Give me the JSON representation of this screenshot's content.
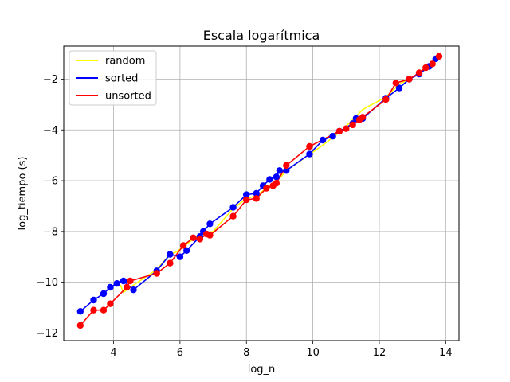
{
  "chart_data": {
    "type": "line",
    "title": "Escala logarítmica",
    "xlabel": "log_n",
    "ylabel": "log_tiempo (s)",
    "xlim": [
      2.5,
      14.4
    ],
    "ylim": [
      -12.3,
      -0.7
    ],
    "xticks": [
      4,
      6,
      8,
      10,
      12,
      14
    ],
    "yticks": [
      -12,
      -10,
      -8,
      -6,
      -4,
      -2
    ],
    "grid": true,
    "legend_position": "top-left",
    "markers": "circle",
    "series": [
      {
        "name": "random",
        "color": "#ffff00",
        "points": [
          [
            4.2,
            -10.1
          ],
          [
            4.3,
            -10.4
          ],
          [
            4.5,
            -10.2
          ],
          [
            5.3,
            -9.5
          ],
          [
            5.7,
            -8.9
          ],
          [
            5.9,
            -8.8
          ],
          [
            6.1,
            -8.6
          ],
          [
            6.4,
            -8.3
          ],
          [
            6.7,
            -8.1
          ],
          [
            7.0,
            -8.0
          ],
          [
            7.6,
            -7.1
          ],
          [
            8.0,
            -6.7
          ],
          [
            8.3,
            -6.6
          ],
          [
            8.7,
            -6.2
          ],
          [
            9.0,
            -5.9
          ],
          [
            9.2,
            -5.6
          ],
          [
            10.3,
            -4.6
          ],
          [
            10.8,
            -4.1
          ],
          [
            11.2,
            -3.6
          ],
          [
            11.5,
            -3.2
          ],
          [
            12.2,
            -2.7
          ],
          [
            12.6,
            -2.2
          ],
          [
            12.9,
            -2.0
          ],
          [
            13.3,
            -1.7
          ],
          [
            13.6,
            -1.4
          ],
          [
            13.8,
            -1.2
          ]
        ]
      },
      {
        "name": "sorted",
        "color": "#0000ff",
        "points": [
          [
            3.0,
            -11.15
          ],
          [
            3.4,
            -10.7
          ],
          [
            3.7,
            -10.45
          ],
          [
            3.9,
            -10.2
          ],
          [
            4.1,
            -10.05
          ],
          [
            4.3,
            -9.95
          ],
          [
            4.6,
            -10.3
          ],
          [
            5.3,
            -9.55
          ],
          [
            5.7,
            -8.9
          ],
          [
            6.0,
            -9.0
          ],
          [
            6.2,
            -8.75
          ],
          [
            6.6,
            -8.2
          ],
          [
            6.7,
            -8.0
          ],
          [
            6.9,
            -7.7
          ],
          [
            7.6,
            -7.05
          ],
          [
            8.0,
            -6.55
          ],
          [
            8.3,
            -6.5
          ],
          [
            8.5,
            -6.2
          ],
          [
            8.7,
            -5.95
          ],
          [
            8.9,
            -5.85
          ],
          [
            9.0,
            -5.6
          ],
          [
            9.2,
            -5.6
          ],
          [
            9.9,
            -4.95
          ],
          [
            10.3,
            -4.4
          ],
          [
            10.6,
            -4.25
          ],
          [
            10.8,
            -4.05
          ],
          [
            11.2,
            -3.75
          ],
          [
            11.3,
            -3.55
          ],
          [
            11.5,
            -3.55
          ],
          [
            12.2,
            -2.75
          ],
          [
            12.6,
            -2.35
          ],
          [
            12.9,
            -2.0
          ],
          [
            13.2,
            -1.8
          ],
          [
            13.5,
            -1.5
          ],
          [
            13.7,
            -1.2
          ]
        ]
      },
      {
        "name": "unsorted",
        "color": "#ff0000",
        "points": [
          [
            3.0,
            -11.7
          ],
          [
            3.4,
            -11.1
          ],
          [
            3.7,
            -11.1
          ],
          [
            3.9,
            -10.85
          ],
          [
            4.4,
            -10.2
          ],
          [
            4.5,
            -9.95
          ],
          [
            5.3,
            -9.65
          ],
          [
            5.7,
            -9.25
          ],
          [
            6.1,
            -8.55
          ],
          [
            6.4,
            -8.25
          ],
          [
            6.6,
            -8.3
          ],
          [
            6.8,
            -8.1
          ],
          [
            6.9,
            -8.15
          ],
          [
            7.6,
            -7.4
          ],
          [
            8.0,
            -6.75
          ],
          [
            8.3,
            -6.7
          ],
          [
            8.6,
            -6.3
          ],
          [
            8.8,
            -6.2
          ],
          [
            8.9,
            -6.1
          ],
          [
            9.2,
            -5.4
          ],
          [
            9.9,
            -4.65
          ],
          [
            10.8,
            -4.05
          ],
          [
            11.0,
            -3.95
          ],
          [
            11.2,
            -3.8
          ],
          [
            11.4,
            -3.6
          ],
          [
            11.5,
            -3.5
          ],
          [
            12.2,
            -2.8
          ],
          [
            12.5,
            -2.15
          ],
          [
            12.9,
            -2.0
          ],
          [
            13.2,
            -1.75
          ],
          [
            13.4,
            -1.55
          ],
          [
            13.6,
            -1.4
          ],
          [
            13.8,
            -1.1
          ]
        ]
      }
    ]
  }
}
